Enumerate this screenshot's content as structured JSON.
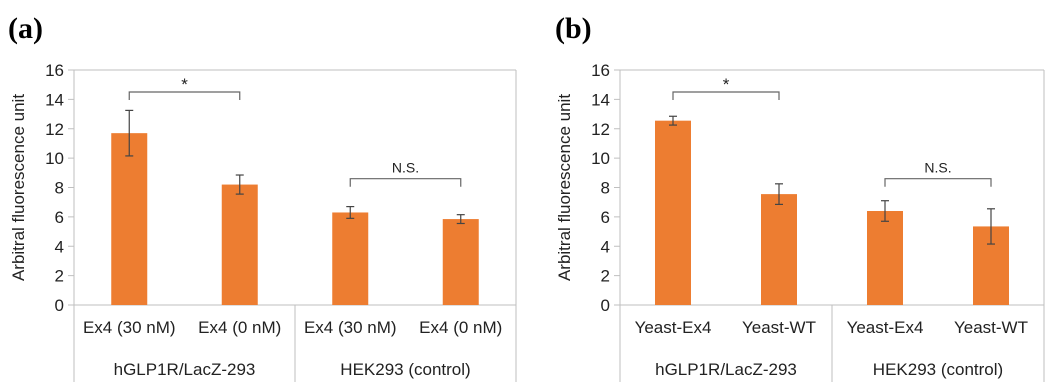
{
  "colors": {
    "bar": "#ed7d31",
    "axis": "#666666",
    "grid": "#bfbfbf",
    "error": "#444444"
  },
  "chart_data": [
    {
      "panel_label": "(a)",
      "type": "bar",
      "ylabel": "Arbitral fluorescence unit",
      "ylim": [
        0,
        16
      ],
      "yticks": [
        0,
        2,
        4,
        6,
        8,
        10,
        12,
        14,
        16
      ],
      "grid": false,
      "categories": [
        "Ex4 (30 nM)",
        "Ex4 (0 nM)",
        "Ex4 (30 nM)",
        "Ex4 (0 nM)"
      ],
      "groups": [
        {
          "label": "hGLP1R/LacZ-293",
          "categories": [
            0,
            1
          ]
        },
        {
          "label": "HEK293 (control)",
          "categories": [
            2,
            3
          ]
        }
      ],
      "values": [
        11.7,
        8.2,
        6.3,
        5.85
      ],
      "errors": [
        1.55,
        0.65,
        0.4,
        0.3
      ],
      "annotations": [
        {
          "label": "*",
          "from": 0,
          "to": 1,
          "y": 14.5
        },
        {
          "label": "N.S.",
          "from": 2,
          "to": 3,
          "y": 8.6
        }
      ]
    },
    {
      "panel_label": "(b)",
      "type": "bar",
      "ylabel": "Arbitral fluorescence unit",
      "ylim": [
        0,
        16
      ],
      "yticks": [
        0,
        2,
        4,
        6,
        8,
        10,
        12,
        14,
        16
      ],
      "grid": false,
      "categories": [
        "Yeast-Ex4",
        "Yeast-WT",
        "Yeast-Ex4",
        "Yeast-WT"
      ],
      "groups": [
        {
          "label": "hGLP1R/LacZ-293",
          "categories": [
            0,
            1
          ]
        },
        {
          "label": "HEK293 (control)",
          "categories": [
            2,
            3
          ]
        }
      ],
      "values": [
        12.55,
        7.55,
        6.4,
        5.35
      ],
      "errors": [
        0.3,
        0.7,
        0.7,
        1.2
      ],
      "annotations": [
        {
          "label": "*",
          "from": 0,
          "to": 1,
          "y": 14.5
        },
        {
          "label": "N.S.",
          "from": 2,
          "to": 3,
          "y": 8.6
        }
      ]
    }
  ]
}
